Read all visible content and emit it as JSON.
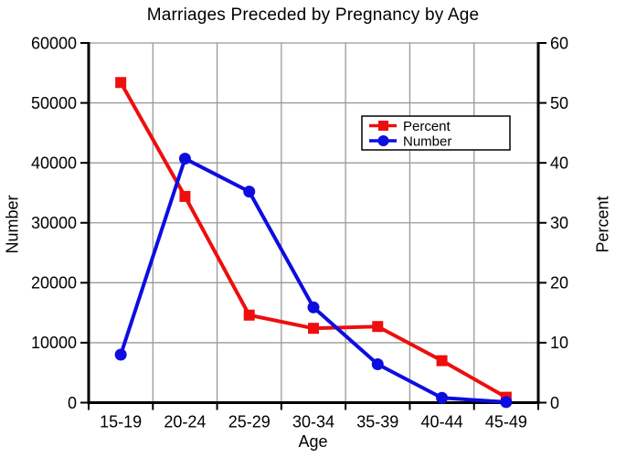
{
  "chart_data": {
    "type": "line",
    "title": "Marriages Preceded by Pregnancy by Age",
    "xlabel": "Age",
    "ylabel_left": "Number",
    "ylabel_right": "Percent",
    "categories": [
      "15-19",
      "20-24",
      "25-29",
      "30-34",
      "35-39",
      "40-44",
      "45-49"
    ],
    "series": [
      {
        "name": "Percent",
        "axis": "right",
        "color": "#ee0e0e",
        "marker": "square",
        "values": [
          53.4,
          34.4,
          14.6,
          12.4,
          12.7,
          7.0,
          0.9
        ]
      },
      {
        "name": "Number",
        "axis": "left",
        "color": "#0d0de0",
        "marker": "circle",
        "values": [
          8000,
          40700,
          35200,
          15900,
          6400,
          800,
          100
        ]
      }
    ],
    "left_axis": {
      "min": 0,
      "max": 60000,
      "step": 10000,
      "tick_labels": [
        "0",
        "10000",
        "20000",
        "30000",
        "40000",
        "50000",
        "60000"
      ]
    },
    "right_axis": {
      "min": 0,
      "max": 60,
      "step": 10,
      "tick_labels": [
        "0",
        "10",
        "20",
        "30",
        "40",
        "50",
        "60"
      ]
    },
    "grid": true,
    "legend": {
      "position": "inside-top-right",
      "entries": [
        "Percent",
        "Number"
      ]
    }
  },
  "colors": {
    "background": "#ffffff",
    "text": "#000000",
    "axis": "#000000",
    "grid": "#999999",
    "legend_border": "#000000",
    "legend_fill": "#ffffff"
  }
}
